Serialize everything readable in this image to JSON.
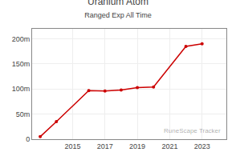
{
  "chart_data": {
    "type": "line",
    "title": "Uranium Atom",
    "subtitle": "Ranged Exp All Time",
    "annotations": [
      "RuneScape Tracker"
    ],
    "x": [
      2013,
      2014,
      2016,
      2017,
      2018,
      2019,
      2020,
      2022,
      2023
    ],
    "values": [
      5000000,
      35000000,
      97000000,
      96000000,
      98000000,
      103000000,
      104000000,
      185000000,
      190000000
    ],
    "color": "#cc0000",
    "marker": "circle",
    "line_style": "solid",
    "xlim": [
      2012.5,
      2024.5
    ],
    "xticks": [
      2015,
      2017,
      2019,
      2021,
      2023
    ],
    "ylim": [
      0,
      220000000
    ],
    "yticks": [
      0,
      {
        "value": 50000000,
        "label": "50m"
      },
      {
        "value": 100000000,
        "label": "100m"
      },
      {
        "value": 150000000,
        "label": "150m"
      },
      {
        "value": 200000000,
        "label": "200m"
      }
    ],
    "grid": true
  }
}
